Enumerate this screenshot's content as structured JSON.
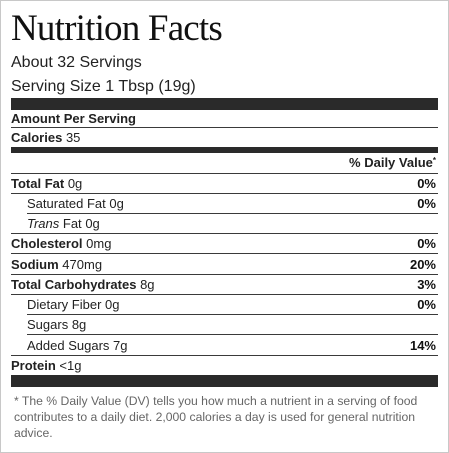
{
  "label": {
    "title": "Nutrition Facts",
    "servings": "About 32 Servings",
    "serving_size": "Serving Size 1 Tbsp (19g)",
    "amount_per_serving": "Amount Per Serving",
    "calories": {
      "label": "Calories",
      "value": "35"
    },
    "daily_value_header": "% Daily Value",
    "daily_value_marker": "*",
    "nutrients": {
      "total_fat": {
        "label": "Total Fat",
        "amount": "0g",
        "dv": "0%"
      },
      "saturated_fat": {
        "label": "Saturated Fat",
        "amount": "0g",
        "dv": "0%"
      },
      "trans_fat": {
        "label": "Trans",
        "label_rest": "Fat",
        "amount": "0g"
      },
      "cholesterol": {
        "label": "Cholesterol",
        "amount": "0mg",
        "dv": "0%"
      },
      "sodium": {
        "label": "Sodium",
        "amount": "470mg",
        "dv": "20%"
      },
      "total_carbs": {
        "label": "Total Carbohydrates",
        "amount": "8g",
        "dv": "3%"
      },
      "dietary_fiber": {
        "label": "Dietary Fiber",
        "amount": "0g",
        "dv": "0%"
      },
      "sugars": {
        "label": "Sugars",
        "amount": "8g"
      },
      "added_sugars": {
        "label": "Added Sugars",
        "amount": "7g",
        "dv": "14%"
      },
      "protein": {
        "label": "Protein",
        "amount": "<1g"
      }
    },
    "footnote": "* The % Daily Value (DV) tells you how much a nutrient in a serving of food contributes to a daily diet. 2,000 calories a day is used for general nutrition advice."
  }
}
